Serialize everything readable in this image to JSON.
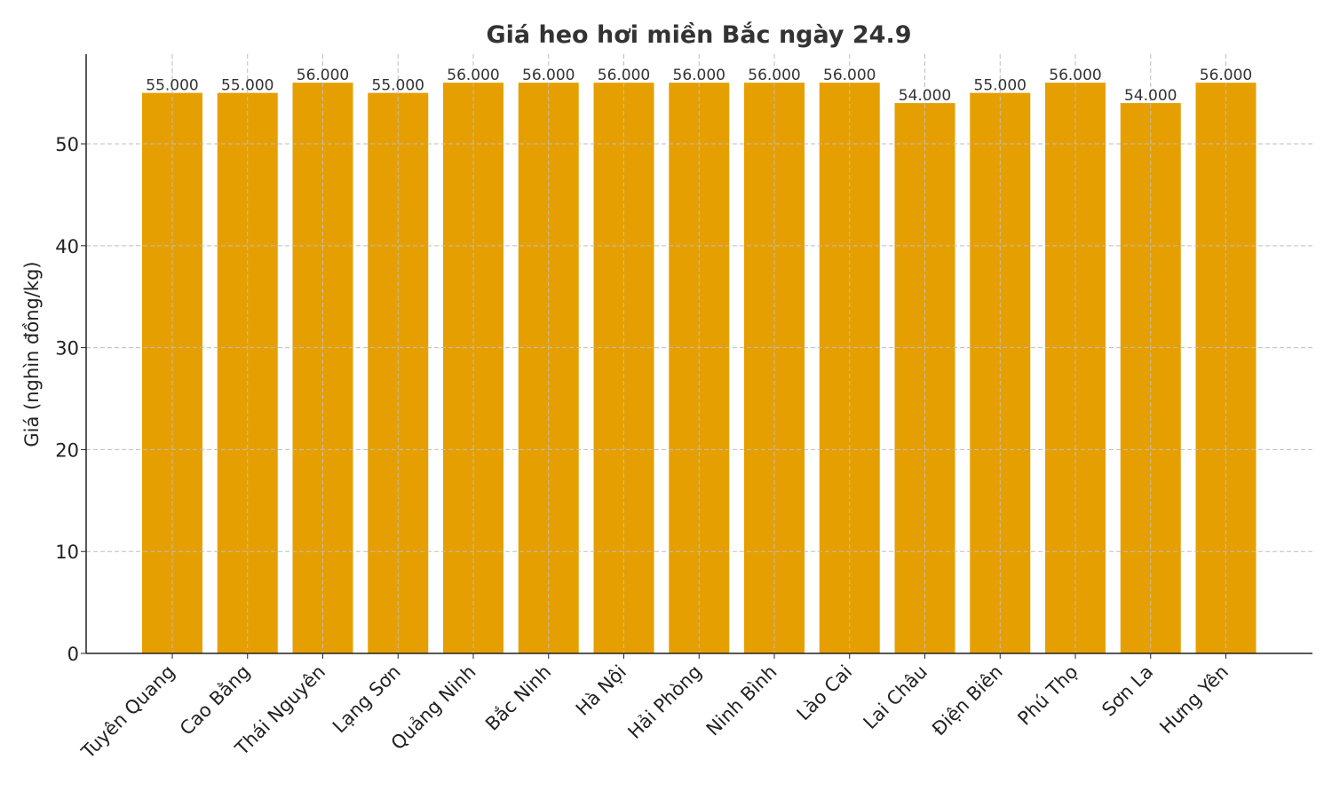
{
  "chart_data": {
    "type": "bar",
    "title": "Giá heo hơi miền Bắc ngày 24.9",
    "xlabel": "",
    "ylabel": "Giá (nghìn đồng/kg)",
    "ylim": [
      0,
      58.8
    ],
    "yticks": [
      0,
      10,
      20,
      30,
      40,
      50
    ],
    "grid": true,
    "legend": "none",
    "bar_color": "#E69F00",
    "categories": [
      "Tuyên Quang",
      "Cao Bằng",
      "Thái Nguyên",
      "Lạng Sơn",
      "Quảng Ninh",
      "Bắc Ninh",
      "Hà Nội",
      "Hải Phòng",
      "Ninh Bình",
      "Lào Cai",
      "Lai Châu",
      "Điện Biên",
      "Phú Thọ",
      "Sơn La",
      "Hưng Yên"
    ],
    "values": [
      55,
      55,
      56,
      55,
      56,
      56,
      56,
      56,
      56,
      56,
      54,
      55,
      56,
      54,
      56
    ],
    "data_labels": [
      "55.000",
      "55.000",
      "56.000",
      "55.000",
      "56.000",
      "56.000",
      "56.000",
      "56.000",
      "56.000",
      "56.000",
      "54.000",
      "55.000",
      "56.000",
      "54.000",
      "56.000"
    ]
  }
}
